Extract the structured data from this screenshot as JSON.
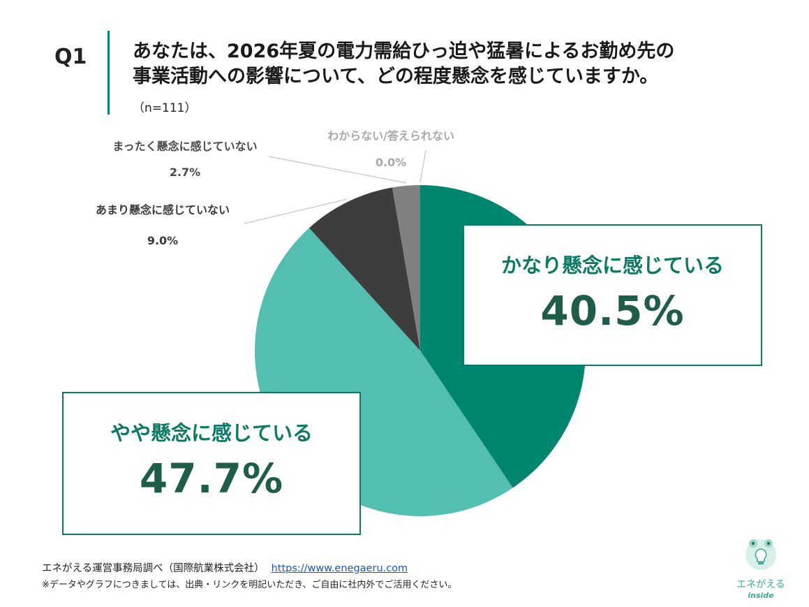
{
  "header": {
    "q_label": "Q1",
    "title_line1": "あなたは、2026年夏の電力需給ひっ迫や猛暑によるお勤め先の",
    "title_line2": "事業活動への影響について、どの程度懸念を感じていますか。",
    "sample_size": "（n=111）"
  },
  "chart_data": {
    "type": "pie",
    "title": "",
    "categories": [
      "かなり懸念に感じている",
      "やや懸念に感じている",
      "あまり懸念に感じていない",
      "まったく懸念に感じていない",
      "わからない/答えられない"
    ],
    "values": [
      40.5,
      47.7,
      9.0,
      2.7,
      0.0
    ],
    "value_labels": [
      "40.5%",
      "47.7%",
      "9.0%",
      "2.7%",
      "0.0%"
    ],
    "colors": [
      "#00866f",
      "#52bfb1",
      "#3d3d3d",
      "#808080",
      "#b8b8b8"
    ],
    "start_angle": "12 o'clock",
    "direction": "clockwise",
    "legend": "none"
  },
  "footer": {
    "source": "エネがえる運営事務局調べ（国際航業株式会社）",
    "url": "https://www.enegaeru.com",
    "note": "※データやグラフにつきましては、出典・リンクを明記いただき、ご自由に社内外でご活用ください。"
  },
  "logo": {
    "name": "エネがえる",
    "sub": "inside",
    "icon": "frog-lightbulb-icon",
    "color": "#3fa89a"
  }
}
